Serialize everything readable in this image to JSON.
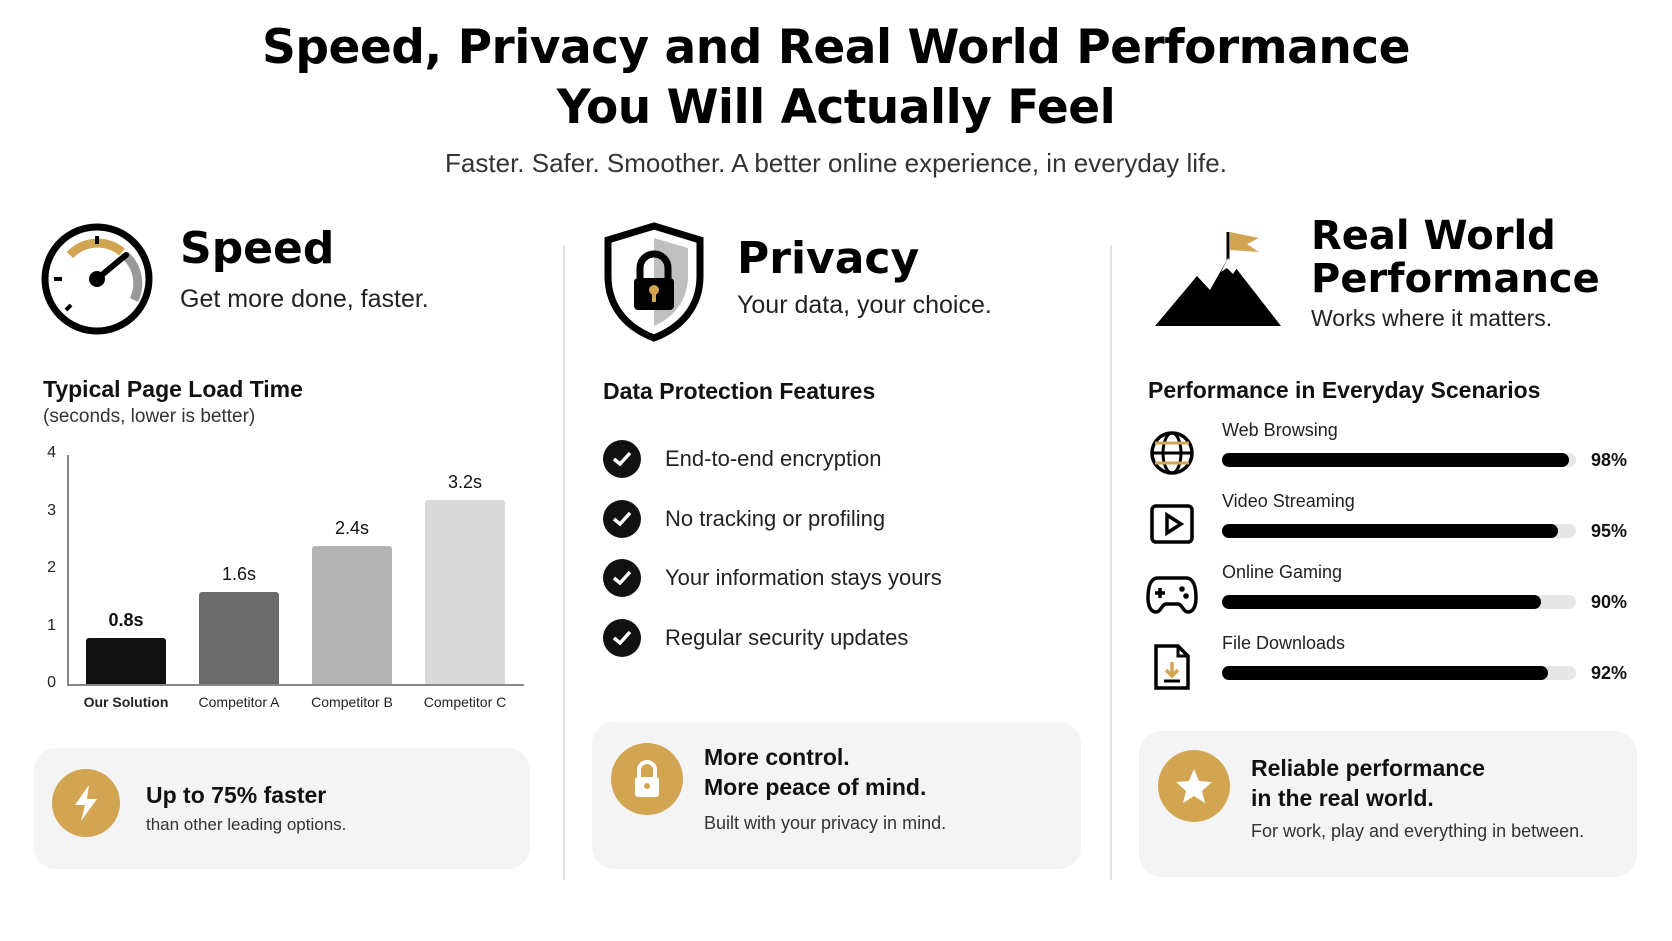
{
  "header": {
    "title_line1": "Speed, Privacy and Real World Performance",
    "title_line2": "You Will Actually Feel",
    "subtitle": "Faster. Safer. Smoother. A better online experience, in everyday life."
  },
  "colors": {
    "accent": "#d2a552",
    "dark": "#000000",
    "card_bg": "#f4f4f4",
    "track": "#e6e6e6"
  },
  "speed": {
    "icon": "speedometer-icon",
    "heading": "Speed",
    "tagline": "Get more done, faster.",
    "chart_title": "Typical Page Load Time",
    "chart_subtitle": "(seconds, lower is better)",
    "card": {
      "icon": "lightning-icon",
      "headline": "Up to 75% faster",
      "text": "than other leading options."
    }
  },
  "chart_data": {
    "type": "bar",
    "title": "Typical Page Load Time",
    "subtitle": "(seconds, lower is better)",
    "categories": [
      "Our Solution",
      "Competitor A",
      "Competitor B",
      "Competitor C"
    ],
    "values": [
      0.8,
      1.6,
      2.4,
      3.2
    ],
    "value_labels": [
      "0.8s",
      "1.6s",
      "2.4s",
      "3.2s"
    ],
    "bar_colors": [
      "#111111",
      "#6b6b6b",
      "#b3b3b3",
      "#d9d9d9"
    ],
    "yticks": [
      "0",
      "1",
      "2",
      "3",
      "4"
    ],
    "ylim": [
      0,
      4
    ],
    "grid": false
  },
  "privacy": {
    "icon": "shield-lock-icon",
    "heading": "Privacy",
    "tagline": "Your data, your choice.",
    "section_title": "Data Protection Features",
    "features": [
      "End-to-end encryption",
      "No tracking or profiling",
      "Your information stays yours",
      "Regular security updates"
    ],
    "card": {
      "icon": "padlock-icon",
      "line1": "More control.",
      "line2": "More peace of mind.",
      "text": "Built with your privacy in mind."
    }
  },
  "performance": {
    "icon": "mountain-flag-icon",
    "heading_line1": "Real World",
    "heading_line2": "Performance",
    "tagline": "Works where it matters.",
    "section_title": "Performance in Everyday Scenarios",
    "scenarios": [
      {
        "label": "Web Browsing",
        "value": 98,
        "display": "98%",
        "icon": "globe-icon"
      },
      {
        "label": "Video Streaming",
        "value": 95,
        "display": "95%",
        "icon": "play-icon"
      },
      {
        "label": "Online Gaming",
        "value": 90,
        "display": "90%",
        "icon": "gamepad-icon"
      },
      {
        "label": "File Downloads",
        "value": 92,
        "display": "92%",
        "icon": "download-file-icon"
      }
    ],
    "card": {
      "icon": "star-icon",
      "line1": "Reliable performance",
      "line2": "in the real world.",
      "text": "For work, play and everything in between."
    }
  }
}
